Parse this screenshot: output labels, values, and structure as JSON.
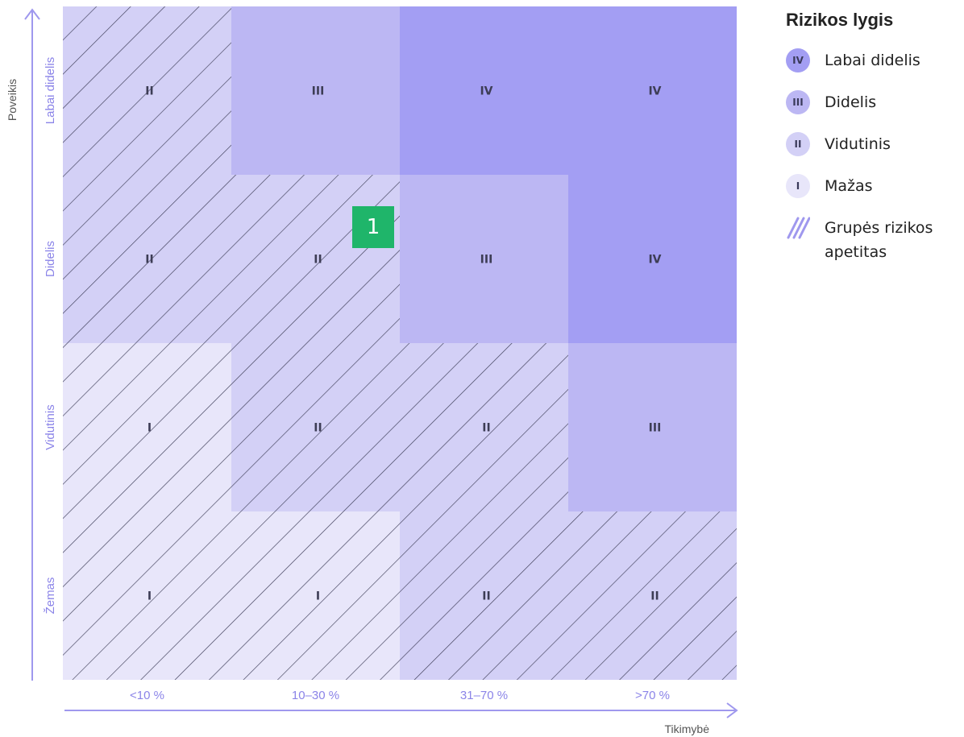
{
  "axes": {
    "y_title": "Poveikis",
    "x_title": "Tikimybė",
    "impact_levels": [
      "Labai didelis",
      "Didelis",
      "Vidutinis",
      "Žemas"
    ],
    "probability_levels": [
      "<10 %",
      "10–30 %",
      "31–70 %",
      ">70 %"
    ]
  },
  "chart_data": {
    "type": "heatmap",
    "rows": [
      "Labai didelis",
      "Didelis",
      "Vidutinis",
      "Žemas"
    ],
    "columns": [
      "<10 %",
      "10–30 %",
      "31–70 %",
      ">70 %"
    ],
    "cells": [
      [
        {
          "level": "II",
          "appetite": true
        },
        {
          "level": "III",
          "appetite": false
        },
        {
          "level": "IV",
          "appetite": false
        },
        {
          "level": "IV",
          "appetite": false
        }
      ],
      [
        {
          "level": "II",
          "appetite": true
        },
        {
          "level": "II",
          "appetite": true
        },
        {
          "level": "III",
          "appetite": false
        },
        {
          "level": "IV",
          "appetite": false
        }
      ],
      [
        {
          "level": "I",
          "appetite": true
        },
        {
          "level": "II",
          "appetite": true
        },
        {
          "level": "II",
          "appetite": true
        },
        {
          "level": "III",
          "appetite": false
        }
      ],
      [
        {
          "level": "I",
          "appetite": true
        },
        {
          "level": "I",
          "appetite": true
        },
        {
          "level": "II",
          "appetite": true
        },
        {
          "level": "II",
          "appetite": true
        }
      ]
    ]
  },
  "level_colors": {
    "I": "#e8e6fa",
    "II": "#d3d0f6",
    "III": "#bcb7f3",
    "IV": "#a39ef3"
  },
  "colors": {
    "axis": "#9f98ee",
    "axis_label": "#8b84e8",
    "hatch": "#3e3e58",
    "badge": "#1fb56a",
    "cell_text": "#3d3d55"
  },
  "legend": {
    "title": "Rizikos lygis",
    "items": [
      {
        "symbol": "IV",
        "label": "Labai didelis"
      },
      {
        "symbol": "III",
        "label": "Didelis"
      },
      {
        "symbol": "II",
        "label": "Vidutinis"
      },
      {
        "symbol": "I",
        "label": "Mažas"
      }
    ],
    "appetite_label": "Grupės rizikos apetitas"
  },
  "badge": {
    "label": "1"
  }
}
